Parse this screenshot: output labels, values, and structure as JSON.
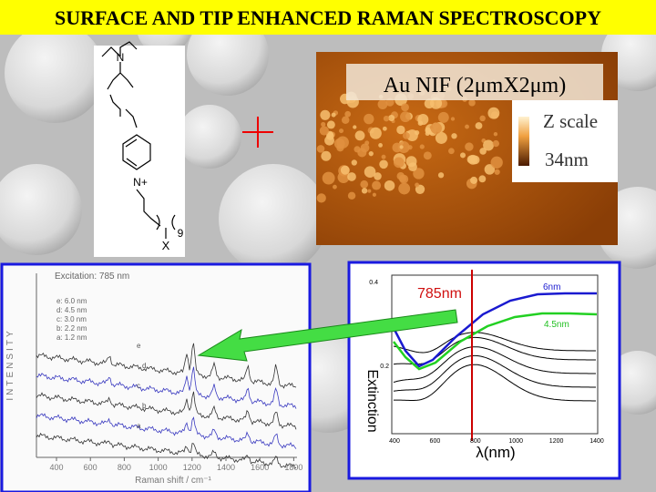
{
  "header": {
    "title": "SURFACE AND TIP ENHANCED RAMAN SPECTROSCOPY"
  },
  "molecule": {
    "labels": [
      "N",
      "N+",
      "9",
      "X"
    ]
  },
  "afm": {
    "title": "Au NIF (2μmX2μm)",
    "scale_title": "Z scale",
    "scale_value": "34nm"
  },
  "raman": {
    "excitation": "Excitation: 785 nm",
    "legend": [
      "e: 6.0 nm",
      "d: 4.5 nm",
      "c: 3.0 nm",
      "b: 2.2 nm",
      "a: 1.2 nm"
    ],
    "curve_labels": [
      "e",
      "d",
      "c",
      "b",
      "a"
    ],
    "y_label": "INTENSITY",
    "x_label": "Raman shift / cm⁻¹",
    "x_ticks": [
      "400",
      "600",
      "800",
      "1000",
      "1200",
      "1400",
      "1600",
      "1800"
    ]
  },
  "extinction": {
    "marker": "785nm",
    "series_labels": [
      "6nm",
      "4.5nm"
    ],
    "y_ticks": [
      "0.4",
      "0.2"
    ],
    "x_ticks": [
      "400",
      "600",
      "800",
      "1000",
      "1200",
      "1400"
    ],
    "x_label": "λ(nm)",
    "y_label": "Extinction"
  }
}
